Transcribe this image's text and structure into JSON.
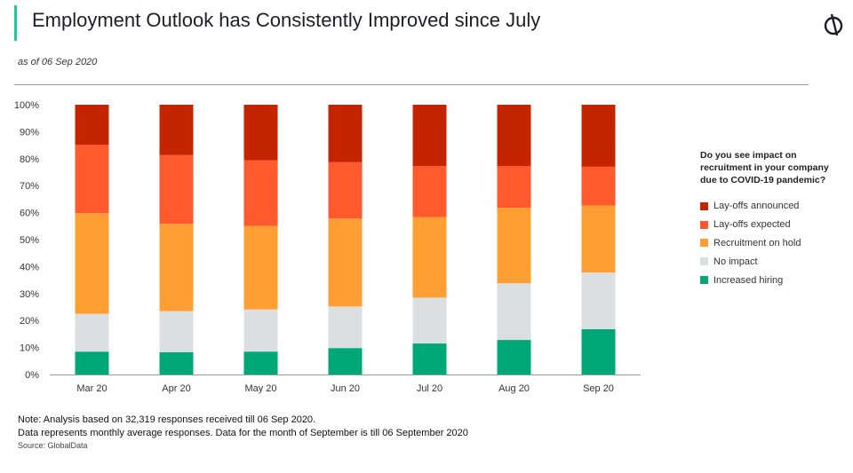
{
  "header": {
    "title": "Employment Outlook has Consistently Improved since July",
    "subtitle": "as of 06 Sep 2020",
    "logo_icon": "globaldata-logo-icon",
    "accent_color": "#1fc79a"
  },
  "chart_data": {
    "type": "bar",
    "stacked": true,
    "categories": [
      "Mar 20",
      "Apr 20",
      "May 20",
      "Jun 20",
      "Jul 20",
      "Aug 20",
      "Sep 20"
    ],
    "series": [
      {
        "name": "Increased hiring",
        "color": "#00a878",
        "values": [
          8.5,
          8.3,
          8.5,
          9.8,
          11.5,
          12.8,
          16.8
        ]
      },
      {
        "name": "No impact",
        "color": "#dcdfe1",
        "values": [
          14.0,
          15.2,
          15.6,
          15.4,
          17.0,
          21.0,
          21.0
        ]
      },
      {
        "name": "Recruitment on hold",
        "color": "#ff9f33",
        "values": [
          37.3,
          32.3,
          31.0,
          32.6,
          29.8,
          28.0,
          24.8
        ]
      },
      {
        "name": "Lay-offs expected",
        "color": "#ff5a2e",
        "values": [
          25.3,
          25.5,
          24.3,
          20.9,
          18.9,
          15.4,
          14.4
        ]
      },
      {
        "name": "Lay-offs announced",
        "color": "#c42500",
        "values": [
          14.9,
          18.7,
          20.6,
          21.3,
          22.8,
          22.8,
          23.0
        ]
      }
    ],
    "ylim": [
      0,
      100
    ],
    "yticks": [
      "0%",
      "10%",
      "20%",
      "30%",
      "40%",
      "50%",
      "60%",
      "70%",
      "80%",
      "90%",
      "100%"
    ],
    "grid": false,
    "legend": {
      "title": "Do you see impact on recruitment in your company due to COVID-19 pandemic?",
      "placement": "right",
      "order": [
        "Lay-offs announced",
        "Lay-offs expected",
        "Recruitment on hold",
        "No impact",
        "Increased hiring"
      ]
    }
  },
  "footer": {
    "note1": "Note: Analysis based on 32,319 responses received till 06 Sep 2020.",
    "note2": "Data represents monthly average responses. Data for the month of September is till 06 September 2020",
    "source": "Source: GlobalData"
  }
}
